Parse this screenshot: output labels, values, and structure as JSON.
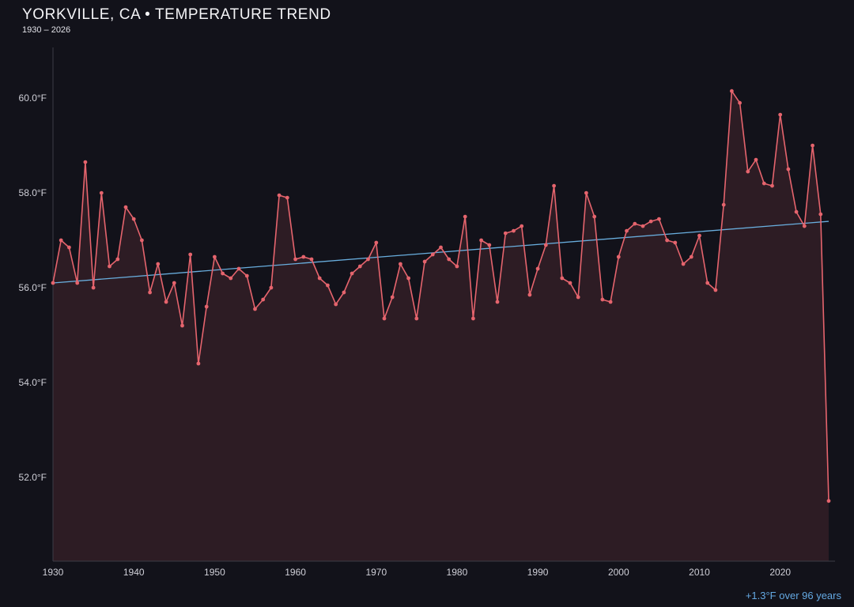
{
  "chart_data": {
    "type": "line",
    "title": "YORKVILLE, CA • TEMPERATURE TREND",
    "subtitle": "1930 – 2026",
    "x": [
      1930,
      1931,
      1932,
      1933,
      1934,
      1935,
      1936,
      1937,
      1938,
      1939,
      1940,
      1941,
      1942,
      1943,
      1944,
      1945,
      1946,
      1947,
      1948,
      1949,
      1950,
      1951,
      1952,
      1953,
      1954,
      1955,
      1956,
      1957,
      1958,
      1959,
      1960,
      1961,
      1962,
      1963,
      1964,
      1965,
      1966,
      1967,
      1968,
      1969,
      1970,
      1971,
      1972,
      1973,
      1974,
      1975,
      1976,
      1977,
      1978,
      1979,
      1980,
      1981,
      1982,
      1983,
      1984,
      1985,
      1986,
      1987,
      1988,
      1989,
      1990,
      1991,
      1992,
      1993,
      1994,
      1995,
      1996,
      1997,
      1998,
      1999,
      2000,
      2001,
      2002,
      2003,
      2004,
      2005,
      2006,
      2007,
      2008,
      2009,
      2010,
      2011,
      2012,
      2013,
      2014,
      2015,
      2016,
      2017,
      2018,
      2019,
      2020,
      2021,
      2022,
      2023,
      2024,
      2025,
      2026
    ],
    "values": [
      56.1,
      57.0,
      56.85,
      56.1,
      58.65,
      56.0,
      58.0,
      56.45,
      56.6,
      57.7,
      57.45,
      57.0,
      55.9,
      56.5,
      55.7,
      56.1,
      55.2,
      56.7,
      54.4,
      55.6,
      56.65,
      56.3,
      56.2,
      56.4,
      56.25,
      55.55,
      55.75,
      56.0,
      57.95,
      57.9,
      56.6,
      56.65,
      56.6,
      56.2,
      56.05,
      55.65,
      55.9,
      56.3,
      56.45,
      56.6,
      56.95,
      55.35,
      55.8,
      56.5,
      56.2,
      55.35,
      56.55,
      56.7,
      56.85,
      56.6,
      56.45,
      57.5,
      55.35,
      57.0,
      56.9,
      55.7,
      57.15,
      57.2,
      57.3,
      55.85,
      56.4,
      56.9,
      58.15,
      56.2,
      56.1,
      55.8,
      58.0,
      57.5,
      55.75,
      55.7,
      56.65,
      57.2,
      57.35,
      57.3,
      57.4,
      57.45,
      57.0,
      56.95,
      56.5,
      56.65,
      57.1,
      56.1,
      55.95,
      57.75,
      60.15,
      59.9,
      58.45,
      58.7,
      58.2,
      58.15,
      59.65,
      58.5,
      57.6,
      57.3,
      59.0,
      57.55,
      51.5
    ],
    "trend": {
      "start": {
        "x": 1930,
        "y": 56.1
      },
      "end": {
        "x": 2026,
        "y": 57.4
      },
      "label": "+1.3°F over 96 years"
    },
    "xlabel": "",
    "ylabel": "",
    "xlim": [
      1930,
      2026
    ],
    "ylim": [
      50.23,
      61.07
    ],
    "x_ticks": [
      {
        "value": 1930,
        "label": "1930"
      },
      {
        "value": 1940,
        "label": "1940"
      },
      {
        "value": 1950,
        "label": "1950"
      },
      {
        "value": 1960,
        "label": "1960"
      },
      {
        "value": 1970,
        "label": "1970"
      },
      {
        "value": 1980,
        "label": "1980"
      },
      {
        "value": 1990,
        "label": "1990"
      },
      {
        "value": 2000,
        "label": "2000"
      },
      {
        "value": 2010,
        "label": "2010"
      },
      {
        "value": 2020,
        "label": "2020"
      }
    ],
    "y_ticks": [
      {
        "value": 52.0,
        "label": "52.0°F"
      },
      {
        "value": 54.0,
        "label": "54.0°F"
      },
      {
        "value": 56.0,
        "label": "56.0°F"
      },
      {
        "value": 58.0,
        "label": "58.0°F"
      },
      {
        "value": 60.0,
        "label": "60.0°F"
      }
    ],
    "grid": false,
    "legend": false,
    "colors": {
      "background": "#12121a",
      "line": "#e5646d",
      "area": "rgba(229,100,109,0.13)",
      "trend": "#69aede",
      "axis": "#3c3c46",
      "tick_text": "#cfcfd7",
      "annotation": "#64a9e3"
    }
  }
}
